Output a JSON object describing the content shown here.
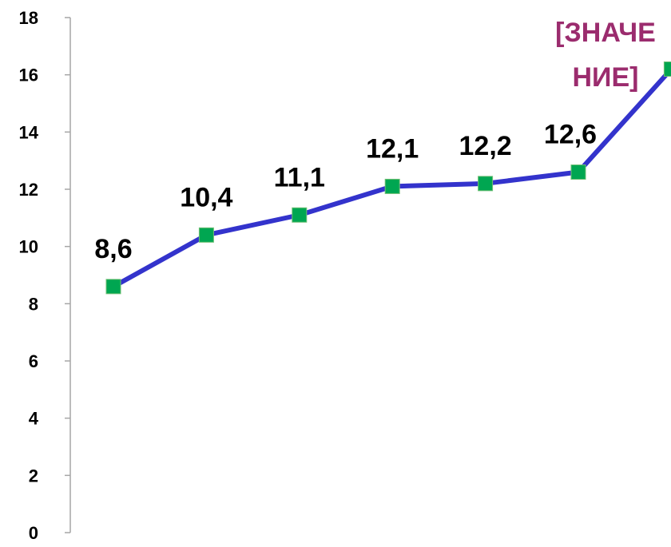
{
  "chart_data": {
    "type": "line",
    "title": "",
    "xlabel": "",
    "ylabel": "",
    "ylim": [
      0,
      18
    ],
    "yticks": [
      "0",
      "2",
      "4",
      "6",
      "8",
      "10",
      "12",
      "14",
      "16",
      "18"
    ],
    "grid": false,
    "legend": "none",
    "series": [
      {
        "values": [
          8.6,
          10.4,
          11.1,
          12.1,
          12.2,
          12.6,
          16.2
        ],
        "data_labels": [
          "8,6",
          "10,4",
          "11,1",
          "12,1",
          "12,2",
          "12,6",
          "[ЗНАЧЕНИЕ]"
        ],
        "line_color": "#3333cc",
        "marker_color": "#00a651",
        "marker": "square"
      }
    ],
    "special_label_color": "#9b2c6e"
  }
}
